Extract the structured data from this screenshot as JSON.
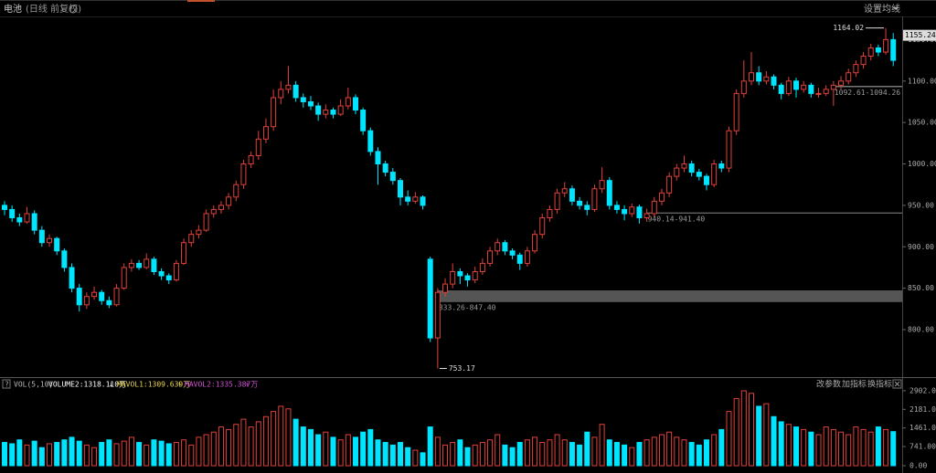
{
  "chart_data": {
    "type": "candlestick",
    "title": "电池",
    "subtitle": "(日线 前复权)",
    "menu": "设置均线",
    "up_color": "#e0413a",
    "down_color": "#00e5ff",
    "ylim": [
      746,
      1178
    ],
    "yticks": [
      {
        "value": 800,
        "label": "800.00"
      },
      {
        "value": 850,
        "label": "850.00"
      },
      {
        "value": 900,
        "label": "900.00"
      },
      {
        "value": 950,
        "label": "950.00"
      },
      {
        "value": 1000,
        "label": "1000.00"
      },
      {
        "value": 1050,
        "label": "1050.00"
      },
      {
        "value": 1100,
        "label": "1100.00"
      },
      {
        "value": 1150,
        "label": "1150.00"
      }
    ],
    "last_price": 1155.24,
    "high_mark": {
      "value": 1164.02,
      "index": 118
    },
    "low_mark": {
      "value": 753.17,
      "index": 58
    },
    "zones": [
      {
        "label": "833.26-847.40",
        "low": 833.26,
        "high": 847.4
      },
      {
        "label": "940.14-941.40",
        "low": 940.14,
        "high": 941.4
      },
      {
        "label": "1092.61-1094.26",
        "low": 1092.61,
        "high": 1094.26
      }
    ],
    "ohlc": [
      [
        950,
        955,
        938,
        945
      ],
      [
        945,
        950,
        930,
        935
      ],
      [
        935,
        940,
        925,
        930
      ],
      [
        930,
        948,
        928,
        940
      ],
      [
        940,
        944,
        915,
        920
      ],
      [
        920,
        925,
        900,
        905
      ],
      [
        905,
        915,
        900,
        910
      ],
      [
        910,
        912,
        890,
        895
      ],
      [
        895,
        898,
        870,
        875
      ],
      [
        875,
        880,
        845,
        850
      ],
      [
        850,
        855,
        822,
        830
      ],
      [
        830,
        845,
        825,
        840
      ],
      [
        840,
        852,
        836,
        845
      ],
      [
        845,
        848,
        830,
        835
      ],
      [
        835,
        840,
        826,
        830
      ],
      [
        830,
        855,
        828,
        850
      ],
      [
        850,
        880,
        848,
        875
      ],
      [
        875,
        885,
        870,
        880
      ],
      [
        880,
        884,
        872,
        875
      ],
      [
        875,
        892,
        873,
        885
      ],
      [
        885,
        888,
        866,
        870
      ],
      [
        870,
        874,
        860,
        865
      ],
      [
        865,
        868,
        855,
        860
      ],
      [
        860,
        884,
        858,
        880
      ],
      [
        880,
        910,
        878,
        905
      ],
      [
        905,
        920,
        900,
        915
      ],
      [
        915,
        926,
        910,
        920
      ],
      [
        920,
        945,
        918,
        940
      ],
      [
        940,
        950,
        935,
        945
      ],
      [
        945,
        955,
        940,
        950
      ],
      [
        950,
        965,
        945,
        960
      ],
      [
        960,
        980,
        955,
        975
      ],
      [
        975,
        1005,
        970,
        1000
      ],
      [
        1000,
        1015,
        995,
        1010
      ],
      [
        1010,
        1040,
        1005,
        1030
      ],
      [
        1030,
        1055,
        1025,
        1045
      ],
      [
        1045,
        1090,
        1040,
        1080
      ],
      [
        1080,
        1100,
        1072,
        1090
      ],
      [
        1090,
        1118,
        1085,
        1095
      ],
      [
        1095,
        1100,
        1075,
        1080
      ],
      [
        1080,
        1085,
        1068,
        1075
      ],
      [
        1075,
        1082,
        1065,
        1070
      ],
      [
        1070,
        1074,
        1052,
        1060
      ],
      [
        1060,
        1072,
        1055,
        1065
      ],
      [
        1065,
        1068,
        1055,
        1060
      ],
      [
        1060,
        1078,
        1058,
        1070
      ],
      [
        1070,
        1092,
        1066,
        1080
      ],
      [
        1080,
        1084,
        1060,
        1065
      ],
      [
        1065,
        1068,
        1035,
        1040
      ],
      [
        1040,
        1044,
        1010,
        1015
      ],
      [
        1015,
        1020,
        975,
        1000
      ],
      [
        1000,
        1004,
        985,
        990
      ],
      [
        990,
        995,
        975,
        980
      ],
      [
        980,
        983,
        950,
        960
      ],
      [
        960,
        968,
        950,
        955
      ],
      [
        955,
        966,
        952,
        960
      ],
      [
        960,
        962,
        945,
        950
      ],
      [
        885,
        888,
        785,
        790
      ],
      [
        790,
        850,
        753.17,
        845
      ],
      [
        845,
        862,
        840,
        855
      ],
      [
        855,
        880,
        850,
        870
      ],
      [
        870,
        874,
        855,
        865
      ],
      [
        865,
        868,
        852,
        860
      ],
      [
        860,
        876,
        856,
        870
      ],
      [
        870,
        886,
        866,
        880
      ],
      [
        880,
        900,
        876,
        895
      ],
      [
        895,
        910,
        890,
        905
      ],
      [
        905,
        908,
        890,
        895
      ],
      [
        895,
        898,
        885,
        890
      ],
      [
        890,
        893,
        872,
        880
      ],
      [
        880,
        900,
        876,
        895
      ],
      [
        895,
        920,
        892,
        915
      ],
      [
        915,
        940,
        910,
        935
      ],
      [
        935,
        950,
        930,
        945
      ],
      [
        945,
        970,
        940,
        965
      ],
      [
        965,
        978,
        960,
        970
      ],
      [
        970,
        974,
        950,
        955
      ],
      [
        955,
        960,
        945,
        950
      ],
      [
        950,
        955,
        938,
        945
      ],
      [
        945,
        975,
        942,
        970
      ],
      [
        970,
        996,
        965,
        980
      ],
      [
        980,
        984,
        945,
        950
      ],
      [
        950,
        955,
        940,
        945
      ],
      [
        945,
        950,
        932,
        940
      ],
      [
        940,
        952,
        936,
        948
      ],
      [
        948,
        951,
        928,
        935
      ],
      [
        935,
        946,
        930,
        940
      ],
      [
        940,
        960,
        936,
        955
      ],
      [
        955,
        970,
        950,
        965
      ],
      [
        965,
        990,
        960,
        985
      ],
      [
        985,
        1000,
        980,
        995
      ],
      [
        995,
        1010,
        990,
        1000
      ],
      [
        1000,
        1004,
        985,
        990
      ],
      [
        990,
        994,
        980,
        985
      ],
      [
        985,
        988,
        968,
        975
      ],
      [
        975,
        1005,
        972,
        1000
      ],
      [
        1000,
        1004,
        990,
        995
      ],
      [
        995,
        1045,
        990,
        1040
      ],
      [
        1040,
        1090,
        1035,
        1085
      ],
      [
        1085,
        1125,
        1080,
        1100
      ],
      [
        1100,
        1135,
        1095,
        1110
      ],
      [
        1110,
        1118,
        1095,
        1100
      ],
      [
        1100,
        1112,
        1096,
        1105
      ],
      [
        1105,
        1108,
        1090,
        1095
      ],
      [
        1095,
        1098,
        1078,
        1085
      ],
      [
        1085,
        1105,
        1082,
        1100
      ],
      [
        1100,
        1104,
        1080,
        1090
      ],
      [
        1090,
        1100,
        1086,
        1095
      ],
      [
        1095,
        1098,
        1080,
        1085
      ],
      [
        1085,
        1092,
        1080,
        1085
      ],
      [
        1085,
        1095,
        1082,
        1090
      ],
      [
        1090,
        1100,
        1070,
        1095
      ],
      [
        1095,
        1106,
        1090,
        1100
      ],
      [
        1100,
        1115,
        1096,
        1110
      ],
      [
        1110,
        1125,
        1105,
        1120
      ],
      [
        1120,
        1135,
        1115,
        1130
      ],
      [
        1130,
        1145,
        1125,
        1140
      ],
      [
        1140,
        1144,
        1130,
        1135
      ],
      [
        1135,
        1164.02,
        1132,
        1150
      ],
      [
        1150,
        1158,
        1118,
        1125
      ]
    ],
    "volume_panel": {
      "name": "VOL(5,10)",
      "volume_label": "VOLUME2:1318.110万",
      "volume_arrow": "↓",
      "ma1_label": "MAVOL1:1309.639万",
      "ma1_arrow": "↑",
      "ma2_label": "MAVOL2:1335.387万",
      "ma2_arrow": "↑",
      "buttons": [
        "改参数",
        "加指标",
        "换指标"
      ],
      "ylim": [
        0,
        3005
      ],
      "yticks": [
        {
          "value": 0,
          "label": "0.00"
        },
        {
          "value": 741,
          "label": "741.00"
        },
        {
          "value": 1461,
          "label": "1461.00"
        },
        {
          "value": 2181,
          "label": "2181.00"
        },
        {
          "value": 2902,
          "label": "2902.00"
        }
      ],
      "values": [
        900,
        850,
        1000,
        800,
        950,
        700,
        850,
        900,
        1000,
        1100,
        950,
        800,
        700,
        900,
        1000,
        850,
        950,
        1100,
        900,
        800,
        1000,
        950,
        850,
        900,
        1000,
        800,
        1100,
        1200,
        1300,
        1500,
        1400,
        1600,
        1800,
        1500,
        1700,
        1900,
        2100,
        2300,
        2200,
        1800,
        1500,
        1400,
        1200,
        1300,
        1100,
        1000,
        1200,
        1100,
        1300,
        1400,
        1000,
        900,
        800,
        900,
        700,
        600,
        500,
        1500,
        1100,
        800,
        900,
        1000,
        700,
        800,
        900,
        1000,
        1200,
        800,
        700,
        900,
        1000,
        1100,
        900,
        1000,
        1200,
        1000,
        900,
        800,
        1300,
        1100,
        1600,
        1000,
        900,
        800,
        700,
        900,
        1000,
        1100,
        1200,
        1300,
        1100,
        1000,
        900,
        800,
        1000,
        1200,
        1400,
        2100,
        2600,
        2900,
        2800,
        2300,
        2400,
        1900,
        1700,
        1600,
        1500,
        1400,
        1300,
        1200,
        1500,
        1400,
        1300,
        1200,
        1500,
        1400,
        1300,
        1500,
        1400,
        1318.11
      ]
    }
  }
}
